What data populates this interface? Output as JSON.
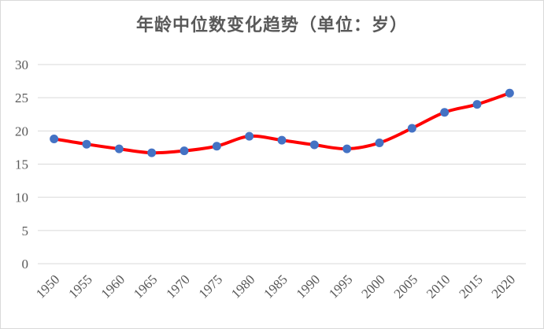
{
  "chart_data": {
    "type": "line",
    "title": "年龄中位数变化趋势（单位：岁）",
    "x": [
      "1950",
      "1955",
      "1960",
      "1965",
      "1970",
      "1975",
      "1980",
      "1985",
      "1990",
      "1995",
      "2000",
      "2005",
      "2010",
      "2015",
      "2020"
    ],
    "series": [
      {
        "values": [
          18.8,
          18.0,
          17.3,
          16.7,
          17.0,
          17.7,
          19.2,
          18.6,
          17.9,
          17.3,
          18.2,
          20.4,
          22.8,
          24.0,
          25.7
        ]
      }
    ],
    "ylim": [
      0,
      30
    ],
    "yticks": [
      0,
      5,
      10,
      15,
      20,
      25,
      30
    ],
    "grid": true,
    "legend": "none",
    "colors": {
      "line": "#ff0000",
      "marker": "#4472c4"
    }
  }
}
